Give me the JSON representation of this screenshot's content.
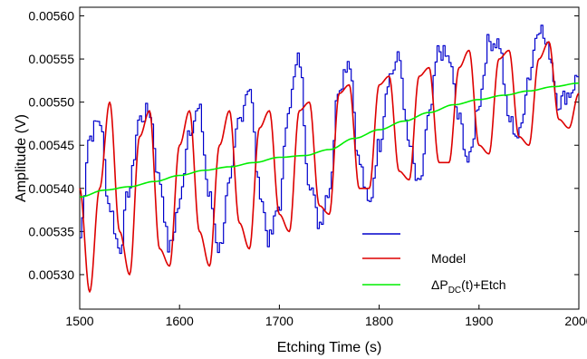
{
  "chart_data": {
    "type": "line",
    "xlabel": "Etching Time (s)",
    "ylabel": "Amplitude (V)",
    "xlim": [
      1500,
      2000
    ],
    "ylim": [
      0.00526,
      0.00561
    ],
    "x_ticks": [
      1500,
      1600,
      1700,
      1800,
      1900,
      2000
    ],
    "x_tick_labels": [
      "1500",
      "1600",
      "1700",
      "1800",
      "1900",
      "2000"
    ],
    "y_ticks": [
      0.0053,
      0.00535,
      0.0054,
      0.00545,
      0.0055,
      0.00555,
      0.0056
    ],
    "y_tick_labels": [
      "0.00530",
      "0.00535",
      "0.00540",
      "0.00545",
      "0.00550",
      "0.00555",
      "0.00560"
    ],
    "grid": false,
    "legend_position": "bottom-center",
    "series": [
      {
        "name": "",
        "color": "#0000cc",
        "style": "noisy-step",
        "x": [
          1500,
          1510,
          1520,
          1530,
          1540,
          1550,
          1560,
          1570,
          1580,
          1590,
          1600,
          1610,
          1620,
          1630,
          1640,
          1650,
          1660,
          1670,
          1680,
          1690,
          1700,
          1710,
          1720,
          1730,
          1740,
          1750,
          1760,
          1770,
          1780,
          1790,
          1800,
          1810,
          1820,
          1830,
          1840,
          1850,
          1860,
          1870,
          1880,
          1890,
          1900,
          1910,
          1920,
          1930,
          1940,
          1950,
          1960,
          1970,
          1980,
          1990,
          2000
        ],
        "y": [
          0.00534,
          0.00546,
          0.00548,
          0.00538,
          0.00533,
          0.0054,
          0.00548,
          0.00549,
          0.00541,
          0.00533,
          0.00538,
          0.00547,
          0.00549,
          0.00539,
          0.00533,
          0.0054,
          0.00548,
          0.00552,
          0.0054,
          0.00534,
          0.00538,
          0.0055,
          0.00555,
          0.00541,
          0.00536,
          0.0054,
          0.00552,
          0.00555,
          0.00543,
          0.00538,
          0.00545,
          0.00553,
          0.00555,
          0.00545,
          0.0054,
          0.00548,
          0.00556,
          0.00555,
          0.00548,
          0.00543,
          0.0055,
          0.00557,
          0.00557,
          0.00548,
          0.00546,
          0.00553,
          0.00559,
          0.00556,
          0.0055,
          0.00551,
          0.00553
        ]
      },
      {
        "name": "Model",
        "color": "#dd0000",
        "style": "smooth",
        "x": [
          1500,
          1510,
          1520,
          1530,
          1540,
          1550,
          1560,
          1570,
          1580,
          1590,
          1600,
          1610,
          1620,
          1630,
          1640,
          1650,
          1660,
          1670,
          1680,
          1690,
          1700,
          1710,
          1720,
          1730,
          1740,
          1750,
          1760,
          1770,
          1780,
          1790,
          1800,
          1810,
          1820,
          1830,
          1840,
          1850,
          1860,
          1870,
          1880,
          1890,
          1900,
          1910,
          1920,
          1930,
          1940,
          1950,
          1960,
          1970,
          1980,
          1990,
          2000
        ],
        "y": [
          0.0054,
          0.00528,
          0.0054,
          0.0055,
          0.00535,
          0.0053,
          0.00546,
          0.00549,
          0.00533,
          0.00531,
          0.00545,
          0.00549,
          0.00535,
          0.00531,
          0.00545,
          0.00549,
          0.00536,
          0.00533,
          0.00547,
          0.00549,
          0.00537,
          0.00535,
          0.00549,
          0.0055,
          0.00538,
          0.00537,
          0.00551,
          0.00552,
          0.0054,
          0.0054,
          0.00552,
          0.00553,
          0.00542,
          0.00541,
          0.00553,
          0.00554,
          0.00543,
          0.00543,
          0.00554,
          0.00556,
          0.00545,
          0.00544,
          0.00555,
          0.00556,
          0.00546,
          0.00545,
          0.00555,
          0.00557,
          0.00548,
          0.00547,
          0.00551
        ]
      },
      {
        "name": "ΔP_DC(t)+Etch",
        "color": "#00ee00",
        "style": "smooth",
        "x": [
          1500,
          1525,
          1550,
          1575,
          1600,
          1625,
          1650,
          1675,
          1700,
          1725,
          1750,
          1775,
          1800,
          1825,
          1850,
          1875,
          1900,
          1925,
          1950,
          1975,
          2000
        ],
        "y": [
          0.00539,
          0.005398,
          0.005402,
          0.005408,
          0.005415,
          0.005421,
          0.005425,
          0.00543,
          0.005436,
          0.005438,
          0.005445,
          0.005458,
          0.005468,
          0.005478,
          0.005488,
          0.005497,
          0.005503,
          0.005508,
          0.005513,
          0.005518,
          0.005522
        ]
      }
    ]
  },
  "legend": {
    "items": [
      {
        "color": "#0000cc",
        "label": "",
        "label_main": "",
        "label_sub": "",
        "label_tail": ""
      },
      {
        "color": "#dd0000",
        "label": "Model",
        "label_main": "Model",
        "label_sub": "",
        "label_tail": ""
      },
      {
        "color": "#00ee00",
        "label": "ΔP_DC(t)+Etch",
        "label_main": "ΔP",
        "label_sub": "DC",
        "label_tail": "(t)+Etch"
      }
    ]
  }
}
